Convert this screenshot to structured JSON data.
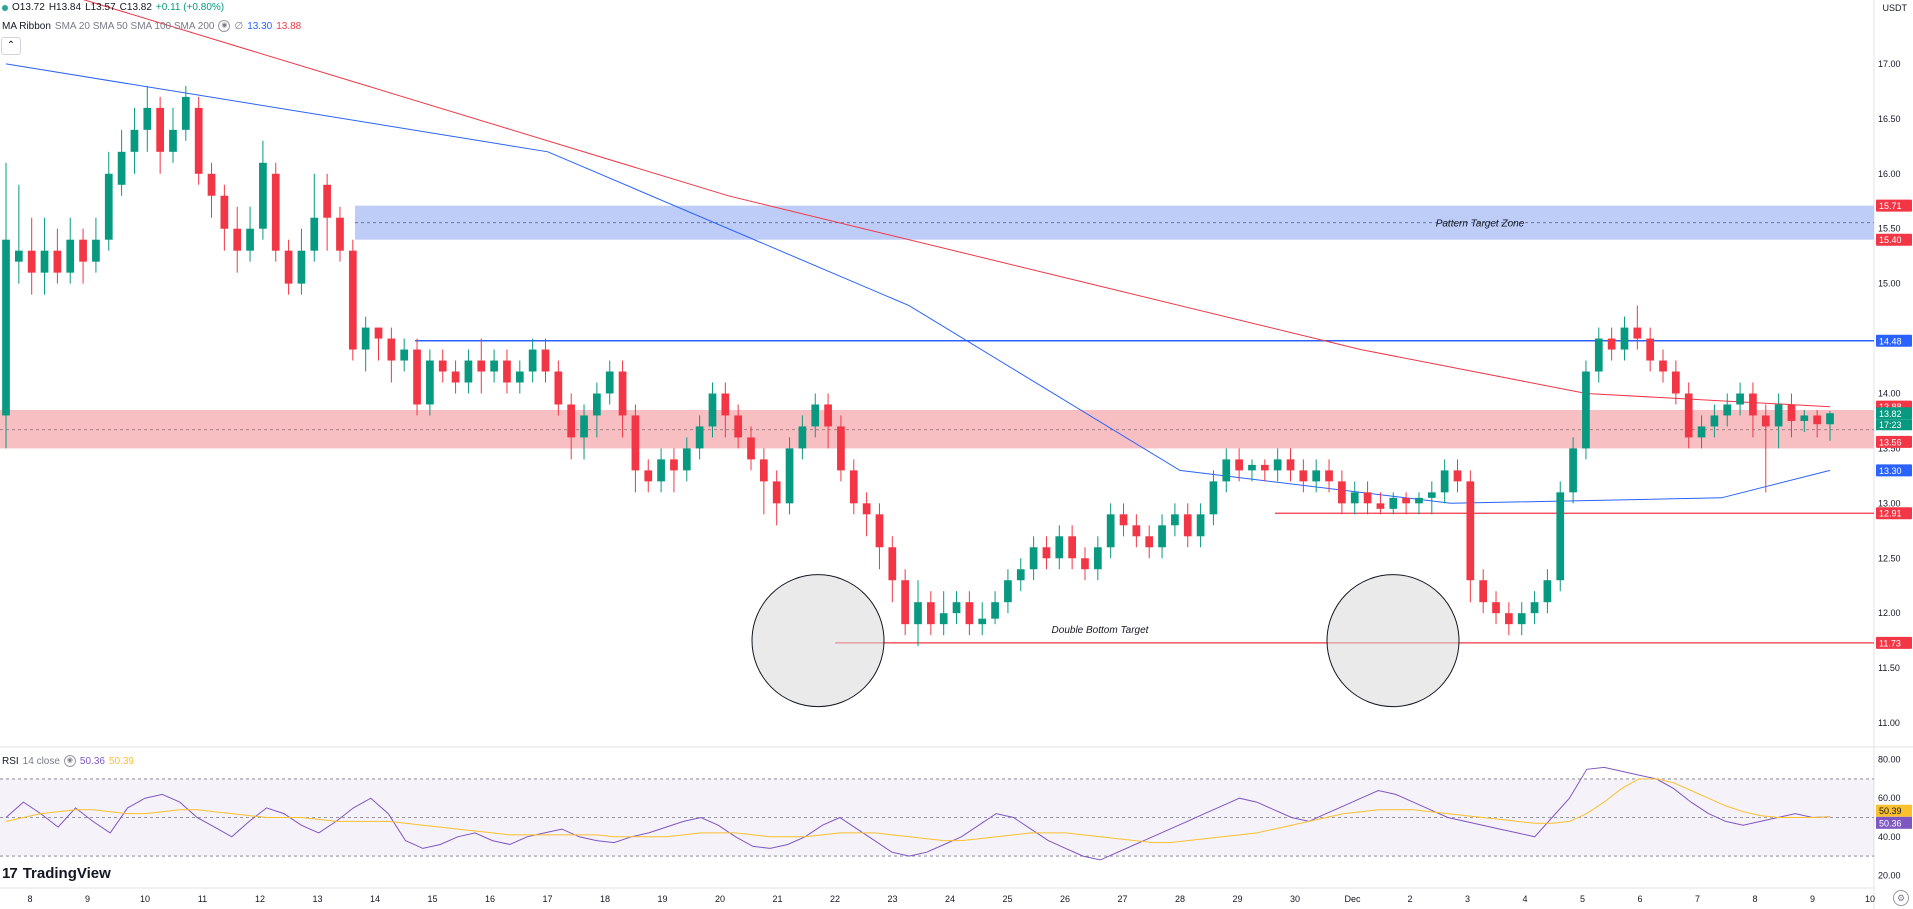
{
  "header": {
    "ohlc": {
      "o": "O13.72",
      "h": "H13.84",
      "l": "L13.57",
      "c": "C13.82",
      "change": "+0.11 (+0.80%)"
    },
    "ma_ribbon": {
      "name": "MA Ribbon",
      "params": "SMA 20 SMA 50 SMA 100 SMA 200",
      "v1": "13.30",
      "v2": "13.88"
    },
    "currency": "USDT"
  },
  "rsi_legend": {
    "name": "RSI",
    "params": "14 close",
    "v1": "50.36",
    "v2": "50.39"
  },
  "logo_text": "TradingView",
  "colors": {
    "up": "#089981",
    "down": "#f23645",
    "sma_blue": "#2962ff",
    "sma_red": "#f23645",
    "rsi": "#7e57c2",
    "rsi_ma": "#fbc02d",
    "zone_red": "#f7b4b9",
    "zone_blue": "#b3c4f7"
  },
  "chart_data": [
    {
      "type": "candlestick",
      "title": "",
      "ylim": [
        10.8,
        17.4
      ],
      "y_ticks": [
        "17.00",
        "16.50",
        "16.00",
        "15.50",
        "15.00",
        "14.50",
        "14.00",
        "13.50",
        "13.00",
        "12.50",
        "12.00",
        "11.50",
        "11.00"
      ],
      "x_ticks": [
        "8",
        "9",
        "10",
        "11",
        "12",
        "13",
        "14",
        "15",
        "16",
        "17",
        "18",
        "19",
        "20",
        "21",
        "22",
        "23",
        "24",
        "25",
        "26",
        "27",
        "28",
        "29",
        "30",
        "Dec",
        "2",
        "3",
        "4",
        "5",
        "6",
        "7",
        "8",
        "9",
        "10"
      ],
      "candles": [
        [
          13.8,
          15.4,
          16.1,
          13.5
        ],
        [
          15.2,
          15.3,
          15.9,
          15.0
        ],
        [
          15.3,
          15.1,
          15.6,
          14.9
        ],
        [
          15.1,
          15.3,
          15.6,
          14.9
        ],
        [
          15.3,
          15.1,
          15.5,
          15.0
        ],
        [
          15.1,
          15.4,
          15.6,
          15.0
        ],
        [
          15.4,
          15.2,
          15.5,
          15.0
        ],
        [
          15.2,
          15.4,
          15.6,
          15.1
        ],
        [
          15.4,
          16.0,
          16.2,
          15.3
        ],
        [
          15.9,
          16.2,
          16.4,
          15.8
        ],
        [
          16.2,
          16.4,
          16.6,
          16.0
        ],
        [
          16.4,
          16.6,
          16.8,
          16.2
        ],
        [
          16.6,
          16.2,
          16.7,
          16.0
        ],
        [
          16.2,
          16.4,
          16.6,
          16.1
        ],
        [
          16.4,
          16.7,
          16.8,
          16.3
        ],
        [
          16.6,
          16.0,
          16.7,
          15.9
        ],
        [
          16.0,
          15.8,
          16.1,
          15.6
        ],
        [
          15.8,
          15.5,
          15.9,
          15.3
        ],
        [
          15.5,
          15.3,
          15.7,
          15.1
        ],
        [
          15.3,
          15.5,
          15.7,
          15.2
        ],
        [
          15.5,
          16.1,
          16.3,
          15.4
        ],
        [
          16.0,
          15.3,
          16.1,
          15.2
        ],
        [
          15.3,
          15.0,
          15.4,
          14.9
        ],
        [
          15.0,
          15.3,
          15.5,
          14.9
        ],
        [
          15.3,
          15.6,
          16.0,
          15.2
        ],
        [
          15.9,
          15.6,
          16.0,
          15.3
        ],
        [
          15.6,
          15.3,
          15.7,
          15.2
        ],
        [
          15.3,
          14.4,
          15.4,
          14.3
        ],
        [
          14.4,
          14.6,
          14.7,
          14.2
        ],
        [
          14.6,
          14.5,
          14.6,
          14.3
        ],
        [
          14.5,
          14.3,
          14.6,
          14.1
        ],
        [
          14.3,
          14.4,
          14.5,
          14.2
        ],
        [
          14.4,
          13.9,
          14.5,
          13.8
        ],
        [
          13.9,
          14.3,
          14.4,
          13.8
        ],
        [
          14.3,
          14.2,
          14.4,
          14.1
        ],
        [
          14.2,
          14.1,
          14.3,
          14.0
        ],
        [
          14.1,
          14.3,
          14.4,
          14.0
        ],
        [
          14.3,
          14.2,
          14.5,
          14.0
        ],
        [
          14.2,
          14.3,
          14.4,
          14.1
        ],
        [
          14.3,
          14.1,
          14.4,
          14.0
        ],
        [
          14.1,
          14.2,
          14.3,
          14.0
        ],
        [
          14.2,
          14.4,
          14.5,
          14.1
        ],
        [
          14.4,
          14.2,
          14.5,
          14.1
        ],
        [
          14.2,
          13.9,
          14.3,
          13.8
        ],
        [
          13.9,
          13.6,
          14.0,
          13.4
        ],
        [
          13.6,
          13.8,
          13.9,
          13.4
        ],
        [
          13.8,
          14.0,
          14.1,
          13.6
        ],
        [
          14.0,
          14.2,
          14.3,
          13.9
        ],
        [
          14.2,
          13.8,
          14.3,
          13.6
        ],
        [
          13.8,
          13.3,
          13.9,
          13.1
        ],
        [
          13.3,
          13.2,
          13.4,
          13.1
        ],
        [
          13.2,
          13.4,
          13.5,
          13.1
        ],
        [
          13.4,
          13.3,
          13.5,
          13.1
        ],
        [
          13.3,
          13.5,
          13.6,
          13.2
        ],
        [
          13.5,
          13.7,
          13.8,
          13.4
        ],
        [
          13.7,
          14.0,
          14.1,
          13.6
        ],
        [
          14.0,
          13.8,
          14.1,
          13.6
        ],
        [
          13.8,
          13.6,
          13.9,
          13.5
        ],
        [
          13.6,
          13.4,
          13.7,
          13.3
        ],
        [
          13.4,
          13.2,
          13.5,
          12.9
        ],
        [
          13.2,
          13.0,
          13.3,
          12.8
        ],
        [
          13.0,
          13.5,
          13.6,
          12.9
        ],
        [
          13.5,
          13.7,
          13.8,
          13.4
        ],
        [
          13.7,
          13.9,
          14.0,
          13.6
        ],
        [
          13.9,
          13.7,
          14.0,
          13.5
        ],
        [
          13.7,
          13.3,
          13.8,
          13.2
        ],
        [
          13.3,
          13.0,
          13.4,
          12.9
        ],
        [
          13.0,
          12.9,
          13.1,
          12.7
        ],
        [
          12.9,
          12.6,
          13.0,
          12.4
        ],
        [
          12.6,
          12.3,
          12.7,
          12.1
        ],
        [
          12.3,
          11.9,
          12.4,
          11.8
        ],
        [
          11.9,
          12.1,
          12.3,
          11.7
        ],
        [
          12.1,
          11.9,
          12.2,
          11.8
        ],
        [
          11.9,
          12.0,
          12.2,
          11.8
        ],
        [
          12.0,
          12.1,
          12.2,
          11.9
        ],
        [
          12.1,
          11.9,
          12.2,
          11.8
        ],
        [
          11.9,
          11.95,
          12.1,
          11.8
        ],
        [
          11.95,
          12.1,
          12.2,
          11.9
        ],
        [
          12.1,
          12.3,
          12.4,
          12.0
        ],
        [
          12.3,
          12.4,
          12.5,
          12.2
        ],
        [
          12.4,
          12.6,
          12.7,
          12.3
        ],
        [
          12.6,
          12.5,
          12.7,
          12.4
        ],
        [
          12.5,
          12.7,
          12.8,
          12.4
        ],
        [
          12.7,
          12.5,
          12.8,
          12.4
        ],
        [
          12.5,
          12.4,
          12.6,
          12.3
        ],
        [
          12.4,
          12.6,
          12.7,
          12.3
        ],
        [
          12.6,
          12.9,
          13.0,
          12.5
        ],
        [
          12.9,
          12.8,
          13.0,
          12.7
        ],
        [
          12.8,
          12.7,
          12.9,
          12.6
        ],
        [
          12.7,
          12.6,
          12.8,
          12.5
        ],
        [
          12.6,
          12.8,
          12.9,
          12.5
        ],
        [
          12.8,
          12.9,
          13.0,
          12.7
        ],
        [
          12.9,
          12.7,
          13.0,
          12.6
        ],
        [
          12.7,
          12.9,
          13.0,
          12.6
        ],
        [
          12.9,
          13.2,
          13.3,
          12.8
        ],
        [
          13.2,
          13.4,
          13.5,
          13.1
        ],
        [
          13.4,
          13.3,
          13.5,
          13.2
        ],
        [
          13.3,
          13.35,
          13.4,
          13.2
        ],
        [
          13.35,
          13.3,
          13.4,
          13.2
        ],
        [
          13.3,
          13.4,
          13.5,
          13.2
        ],
        [
          13.4,
          13.3,
          13.5,
          13.2
        ],
        [
          13.3,
          13.2,
          13.4,
          13.1
        ],
        [
          13.2,
          13.3,
          13.4,
          13.1
        ],
        [
          13.3,
          13.2,
          13.4,
          13.1
        ],
        [
          13.2,
          13.0,
          13.3,
          12.9
        ],
        [
          13.0,
          13.1,
          13.2,
          12.9
        ],
        [
          13.1,
          13.0,
          13.2,
          12.9
        ],
        [
          13.0,
          12.95,
          13.1,
          12.9
        ],
        [
          12.95,
          13.05,
          13.1,
          12.9
        ],
        [
          13.05,
          13.0,
          13.1,
          12.9
        ],
        [
          13.0,
          13.05,
          13.1,
          12.9
        ],
        [
          13.05,
          13.1,
          13.2,
          12.9
        ],
        [
          13.1,
          13.3,
          13.4,
          13.0
        ],
        [
          13.3,
          13.2,
          13.4,
          13.1
        ],
        [
          13.2,
          12.3,
          13.3,
          12.1
        ],
        [
          12.3,
          12.1,
          12.4,
          12.0
        ],
        [
          12.1,
          12.0,
          12.2,
          11.9
        ],
        [
          12.0,
          11.9,
          12.1,
          11.8
        ],
        [
          11.9,
          12.0,
          12.1,
          11.8
        ],
        [
          12.0,
          12.1,
          12.2,
          11.9
        ],
        [
          12.1,
          12.3,
          12.4,
          12.0
        ],
        [
          12.3,
          13.1,
          13.2,
          12.2
        ],
        [
          13.1,
          13.5,
          13.6,
          13.0
        ],
        [
          13.5,
          14.2,
          14.3,
          13.4
        ],
        [
          14.2,
          14.5,
          14.6,
          14.1
        ],
        [
          14.5,
          14.4,
          14.6,
          14.3
        ],
        [
          14.4,
          14.6,
          14.7,
          14.3
        ],
        [
          14.6,
          14.5,
          14.8,
          14.4
        ],
        [
          14.5,
          14.3,
          14.6,
          14.2
        ],
        [
          14.3,
          14.2,
          14.4,
          14.1
        ],
        [
          14.2,
          14.0,
          14.3,
          13.9
        ],
        [
          14.0,
          13.6,
          14.1,
          13.5
        ],
        [
          13.6,
          13.7,
          13.8,
          13.5
        ],
        [
          13.7,
          13.8,
          13.9,
          13.6
        ],
        [
          13.8,
          13.9,
          14.0,
          13.7
        ],
        [
          13.9,
          14.0,
          14.1,
          13.8
        ],
        [
          14.0,
          13.8,
          14.1,
          13.6
        ],
        [
          13.8,
          13.7,
          13.9,
          13.1
        ],
        [
          13.7,
          13.9,
          14.0,
          13.5
        ],
        [
          13.9,
          13.75,
          14.0,
          13.6
        ],
        [
          13.75,
          13.8,
          13.85,
          13.65
        ],
        [
          13.8,
          13.72,
          13.85,
          13.6
        ],
        [
          13.72,
          13.82,
          13.84,
          13.57
        ]
      ],
      "sma_blue": [
        [
          0,
          17.0
        ],
        [
          60,
          16.2
        ],
        [
          100,
          14.8
        ],
        [
          130,
          13.3
        ],
        [
          160,
          13.0
        ],
        [
          190,
          13.05
        ],
        [
          202,
          13.3
        ]
      ],
      "sma_red": [
        [
          0,
          17.8
        ],
        [
          40,
          16.8
        ],
        [
          80,
          15.8
        ],
        [
          120,
          15.0
        ],
        [
          150,
          14.4
        ],
        [
          175,
          14.0
        ],
        [
          202,
          13.88
        ]
      ],
      "levels": [
        {
          "price": 15.71,
          "label": "15.71",
          "kind": "zone_top"
        },
        {
          "price": 15.4,
          "label": "15.40",
          "kind": "zone_bottom"
        },
        {
          "price": 14.48,
          "label": "14.48",
          "kind": "line_blue"
        },
        {
          "price": 13.88,
          "label": "13.88",
          "kind": "ma_red"
        },
        {
          "price": 13.82,
          "label": "13.82",
          "kind": "last_price"
        },
        {
          "price": 13.56,
          "label": "13.56",
          "kind": "zone_red"
        },
        {
          "price": 13.3,
          "label": "13.30",
          "kind": "ma_blue"
        },
        {
          "price": 12.91,
          "label": "12.91",
          "kind": "line_red"
        },
        {
          "price": 11.73,
          "label": "11.73",
          "kind": "line_red"
        }
      ],
      "countdown": "17:23",
      "annotations": [
        "Pattern Target Zone",
        "Double Bottom Target"
      ],
      "ma_ribbon_values": {
        "sma_blue": 13.3,
        "sma_red": 13.88
      }
    },
    {
      "type": "line",
      "title": "RSI 14 close",
      "ylim": [
        15,
        85
      ],
      "y_ticks": [
        "80.00",
        "60.00",
        "40.00",
        "20.00"
      ],
      "series": [
        {
          "name": "RSI",
          "values": [
            50,
            58,
            52,
            45,
            55,
            48,
            42,
            55,
            60,
            62,
            58,
            50,
            45,
            40,
            48,
            55,
            52,
            46,
            42,
            48,
            55,
            60,
            52,
            38,
            34,
            36,
            40,
            42,
            38,
            36,
            40,
            42,
            44,
            40,
            38,
            37,
            40,
            42,
            45,
            48,
            50,
            46,
            40,
            35,
            34,
            36,
            40,
            46,
            50,
            44,
            38,
            32,
            30,
            32,
            36,
            40,
            46,
            52,
            50,
            44,
            38,
            34,
            30,
            28,
            32,
            36,
            40,
            44,
            48,
            52,
            56,
            60,
            58,
            54,
            50,
            48,
            52,
            56,
            60,
            64,
            62,
            58,
            54,
            50,
            48,
            46,
            44,
            42,
            40,
            50,
            60,
            75,
            76,
            74,
            72,
            70,
            65,
            58,
            52,
            48,
            46,
            48,
            50,
            52,
            50,
            50.36
          ]
        },
        {
          "name": "RSI-based MA",
          "values": [
            48,
            50,
            52,
            53,
            54,
            54,
            53,
            52,
            52,
            53,
            54,
            54,
            53,
            52,
            51,
            50,
            50,
            50,
            49,
            48,
            48,
            48,
            48,
            47,
            46,
            45,
            44,
            43,
            42,
            41,
            41,
            41,
            41,
            41,
            41,
            40,
            40,
            40,
            40,
            41,
            42,
            42,
            42,
            41,
            40,
            40,
            40,
            41,
            42,
            42,
            42,
            41,
            40,
            39,
            38,
            38,
            39,
            40,
            41,
            42,
            42,
            42,
            41,
            40,
            39,
            38,
            37,
            37,
            38,
            39,
            40,
            41,
            42,
            44,
            46,
            48,
            50,
            52,
            53,
            54,
            54,
            54,
            53,
            52,
            51,
            50,
            49,
            48,
            47,
            47,
            48,
            52,
            58,
            65,
            70,
            70,
            68,
            64,
            60,
            56,
            53,
            51,
            50,
            50,
            50,
            50.39
          ]
        }
      ],
      "reference_lines": [
        70,
        50,
        30
      ]
    }
  ]
}
